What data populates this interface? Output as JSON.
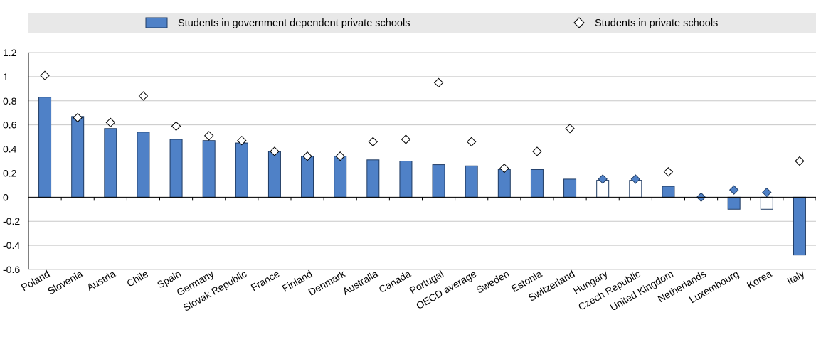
{
  "chart_data": {
    "type": "bar",
    "categories": [
      "Poland",
      "Slovenia",
      "Austria",
      "Chile",
      "Spain",
      "Germany",
      "Slovak Republic",
      "France",
      "Finland",
      "Denmark",
      "Australia",
      "Canada",
      "Portugal",
      "OECD average",
      "Sweden",
      "Estonia",
      "Switzerland",
      "Hungary",
      "Czech Republic",
      "United Kingdom",
      "Netherlands",
      "Luxembourg",
      "Korea",
      "Italy"
    ],
    "series": [
      {
        "name": "Students in government dependent private schools",
        "mark": "bar",
        "values": [
          0.83,
          0.67,
          0.57,
          0.54,
          0.48,
          0.47,
          0.45,
          0.38,
          0.34,
          0.34,
          0.31,
          0.3,
          0.27,
          0.26,
          0.23,
          0.23,
          0.15,
          0.14,
          0.14,
          0.09,
          0.0,
          -0.1,
          -0.1,
          -0.48
        ],
        "significant": [
          true,
          true,
          true,
          true,
          true,
          true,
          true,
          true,
          true,
          true,
          true,
          true,
          true,
          true,
          true,
          true,
          true,
          false,
          false,
          true,
          true,
          true,
          false,
          true
        ]
      },
      {
        "name": "Students in private schools",
        "mark": "diamond",
        "values": [
          1.01,
          0.66,
          0.62,
          0.84,
          0.59,
          0.51,
          0.47,
          0.38,
          0.34,
          0.34,
          0.46,
          0.48,
          0.95,
          0.46,
          0.24,
          0.38,
          0.57,
          0.15,
          0.15,
          0.21,
          0.0,
          0.06,
          0.04,
          0.3
        ],
        "significant": [
          false,
          false,
          false,
          false,
          false,
          false,
          false,
          false,
          false,
          false,
          false,
          false,
          false,
          false,
          false,
          false,
          false,
          true,
          true,
          false,
          true,
          true,
          true,
          false
        ]
      }
    ],
    "yticks": [
      "1.2",
      "1",
      "0.8",
      "0.6",
      "0.4",
      "0.2",
      "0",
      "-0.2",
      "-0.4",
      "-0.6"
    ],
    "ylim": [
      -0.6,
      1.2
    ],
    "legend_position": "top",
    "colors": {
      "bar": "#4f81c7",
      "bar_stroke": "#1f3b63",
      "legend_bg": "#e8e8e8"
    }
  }
}
